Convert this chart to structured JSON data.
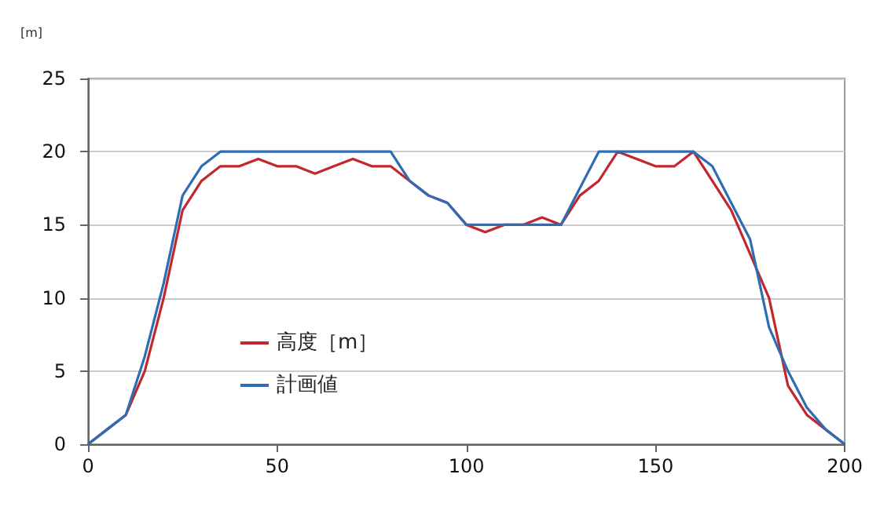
{
  "chart_data": {
    "type": "line",
    "ylabel": "[m]",
    "x": [
      0,
      5,
      10,
      15,
      20,
      25,
      30,
      35,
      40,
      45,
      50,
      55,
      60,
      65,
      70,
      75,
      80,
      85,
      90,
      95,
      100,
      105,
      110,
      115,
      120,
      125,
      130,
      135,
      140,
      145,
      150,
      155,
      160,
      165,
      170,
      175,
      180,
      185,
      190,
      195,
      200
    ],
    "series": [
      {
        "name": "高度［m］",
        "color": "#c0282d",
        "values": [
          0,
          1,
          2,
          5,
          10,
          16,
          18,
          19,
          19,
          19.5,
          19,
          19,
          18.5,
          19,
          19.5,
          19,
          19,
          18,
          17,
          16.5,
          15,
          14.5,
          15,
          15,
          15.5,
          15,
          17,
          18,
          20,
          19.5,
          19,
          19,
          20,
          18,
          16,
          13,
          10,
          4,
          2,
          1,
          0
        ]
      },
      {
        "name": "計画値",
        "color": "#2e6db4",
        "values": [
          0,
          1,
          2,
          6,
          11,
          17,
          19,
          20,
          20,
          20,
          20,
          20,
          20,
          20,
          20,
          20,
          20,
          18,
          17,
          16.5,
          15,
          15,
          15,
          15,
          15,
          15,
          17.5,
          20,
          20,
          20,
          20,
          20,
          20,
          19,
          16.5,
          14,
          8,
          5,
          2.5,
          1,
          0
        ]
      }
    ],
    "xlim": [
      0,
      200
    ],
    "xticks": [
      0,
      50,
      100,
      150,
      200
    ],
    "ylim": [
      0,
      25
    ],
    "yticks": [
      0,
      5,
      10,
      15,
      20,
      25
    ],
    "grid": "y",
    "legend": "bottom left",
    "marker": "none",
    "line_style": "solid"
  }
}
